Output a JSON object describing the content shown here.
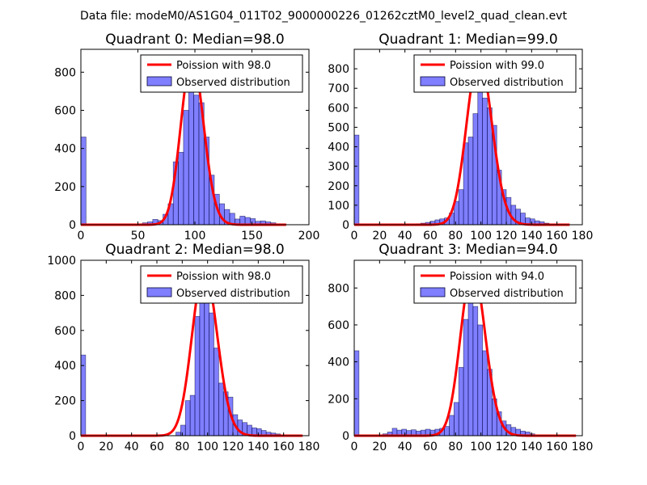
{
  "suptitle": "Data file: modeM0/AS1G04_011T02_9000000226_01262cztM0_level2_quad_clean.evt",
  "colors": {
    "poisson": "#ff0000",
    "observed": "#0000ff"
  },
  "chart_data": [
    {
      "type": "bar",
      "title": "Quadrant 0: Median=98.0",
      "median": 98.0,
      "legend": {
        "position": "top-right",
        "poisson_label": "Poission with 98.0",
        "observed_label": "Observed distribution"
      },
      "xlim": [
        0,
        200
      ],
      "ylim": [
        0,
        920
      ],
      "xticks": [
        0,
        50,
        100,
        150,
        200
      ],
      "yticks": [
        0,
        200,
        400,
        600,
        800
      ],
      "bin_width": 4.5,
      "bars": [
        {
          "x": 0,
          "h": 460
        },
        {
          "x": 49.5,
          "h": 5
        },
        {
          "x": 54,
          "h": 10
        },
        {
          "x": 58.5,
          "h": 15
        },
        {
          "x": 63,
          "h": 28
        },
        {
          "x": 67.5,
          "h": 22
        },
        {
          "x": 72,
          "h": 55
        },
        {
          "x": 76.5,
          "h": 110
        },
        {
          "x": 81,
          "h": 330
        },
        {
          "x": 85.5,
          "h": 380
        },
        {
          "x": 90,
          "h": 600
        },
        {
          "x": 94.5,
          "h": 730
        },
        {
          "x": 99,
          "h": 680
        },
        {
          "x": 103.5,
          "h": 640
        },
        {
          "x": 108,
          "h": 460
        },
        {
          "x": 112.5,
          "h": 260
        },
        {
          "x": 117,
          "h": 160
        },
        {
          "x": 121.5,
          "h": 110
        },
        {
          "x": 126,
          "h": 80
        },
        {
          "x": 130.5,
          "h": 60
        },
        {
          "x": 135,
          "h": 30
        },
        {
          "x": 139.5,
          "h": 45
        },
        {
          "x": 144,
          "h": 38
        },
        {
          "x": 148.5,
          "h": 32
        },
        {
          "x": 153,
          "h": 18
        },
        {
          "x": 157.5,
          "h": 20
        },
        {
          "x": 162,
          "h": 15
        },
        {
          "x": 166.5,
          "h": 10
        },
        {
          "x": 171,
          "h": 5
        },
        {
          "x": 175.5,
          "h": 3
        }
      ],
      "poisson_xmax": 180,
      "poisson_peak": 875
    },
    {
      "type": "bar",
      "title": "Quadrant 1: Median=99.0",
      "median": 99.0,
      "legend": {
        "position": "top-right",
        "poisson_label": "Poission with 99.0",
        "observed_label": "Observed distribution"
      },
      "xlim": [
        0,
        180
      ],
      "ylim": [
        0,
        900
      ],
      "xticks": [
        0,
        20,
        40,
        60,
        80,
        100,
        120,
        140,
        160,
        180
      ],
      "yticks": [
        0,
        100,
        200,
        300,
        400,
        500,
        600,
        700,
        800
      ],
      "bin_width": 3.75,
      "bars": [
        {
          "x": 0,
          "h": 460
        },
        {
          "x": 48.75,
          "h": 5
        },
        {
          "x": 52.5,
          "h": 8
        },
        {
          "x": 56.25,
          "h": 12
        },
        {
          "x": 60,
          "h": 18
        },
        {
          "x": 63.75,
          "h": 25
        },
        {
          "x": 67.5,
          "h": 30
        },
        {
          "x": 71.25,
          "h": 35
        },
        {
          "x": 75,
          "h": 60
        },
        {
          "x": 78.75,
          "h": 120
        },
        {
          "x": 82.5,
          "h": 180
        },
        {
          "x": 86.25,
          "h": 420
        },
        {
          "x": 90,
          "h": 450
        },
        {
          "x": 93.75,
          "h": 570
        },
        {
          "x": 97.5,
          "h": 680
        },
        {
          "x": 101.25,
          "h": 650
        },
        {
          "x": 105,
          "h": 600
        },
        {
          "x": 108.75,
          "h": 510
        },
        {
          "x": 112.5,
          "h": 280
        },
        {
          "x": 116.25,
          "h": 180
        },
        {
          "x": 120,
          "h": 140
        },
        {
          "x": 123.75,
          "h": 100
        },
        {
          "x": 127.5,
          "h": 80
        },
        {
          "x": 131.25,
          "h": 60
        },
        {
          "x": 135,
          "h": 35
        },
        {
          "x": 138.75,
          "h": 30
        },
        {
          "x": 142.5,
          "h": 20
        },
        {
          "x": 146.25,
          "h": 15
        },
        {
          "x": 150,
          "h": 8
        }
      ],
      "poisson_xmax": 170,
      "poisson_peak": 860
    },
    {
      "type": "bar",
      "title": "Quadrant 2: Median=98.0",
      "median": 98.0,
      "legend": {
        "position": "top-right",
        "poisson_label": "Poission with 98.0",
        "observed_label": "Observed distribution"
      },
      "xlim": [
        0,
        180
      ],
      "ylim": [
        0,
        1000
      ],
      "xticks": [
        0,
        20,
        40,
        60,
        80,
        100,
        120,
        140,
        160,
        180
      ],
      "yticks": [
        0,
        200,
        400,
        600,
        800,
        1000
      ],
      "bin_width": 3.75,
      "bars": [
        {
          "x": 0,
          "h": 460
        },
        {
          "x": 75,
          "h": 20
        },
        {
          "x": 78.75,
          "h": 60
        },
        {
          "x": 82.5,
          "h": 200
        },
        {
          "x": 86.25,
          "h": 230
        },
        {
          "x": 90,
          "h": 680
        },
        {
          "x": 93.75,
          "h": 800
        },
        {
          "x": 97.5,
          "h": 810
        },
        {
          "x": 101.25,
          "h": 700
        },
        {
          "x": 105,
          "h": 500
        },
        {
          "x": 108.75,
          "h": 300
        },
        {
          "x": 112.5,
          "h": 250
        },
        {
          "x": 116.25,
          "h": 220
        },
        {
          "x": 120,
          "h": 120
        },
        {
          "x": 123.75,
          "h": 90
        },
        {
          "x": 127.5,
          "h": 75
        },
        {
          "x": 131.25,
          "h": 60
        },
        {
          "x": 135,
          "h": 45
        },
        {
          "x": 138.75,
          "h": 40
        },
        {
          "x": 142.5,
          "h": 30
        },
        {
          "x": 146.25,
          "h": 20
        },
        {
          "x": 150,
          "h": 15
        },
        {
          "x": 153.75,
          "h": 10
        },
        {
          "x": 157.5,
          "h": 5
        }
      ],
      "poisson_xmax": 175,
      "poisson_peak": 950
    },
    {
      "type": "bar",
      "title": "Quadrant 3: Median=94.0",
      "median": 94.0,
      "legend": {
        "position": "top-right",
        "poisson_label": "Poission with 94.0",
        "observed_label": "Observed distribution"
      },
      "xlim": [
        0,
        180
      ],
      "ylim": [
        0,
        950
      ],
      "xticks": [
        0,
        20,
        40,
        60,
        80,
        100,
        120,
        140,
        160,
        180
      ],
      "yticks": [
        0,
        200,
        400,
        600,
        800
      ],
      "bin_width": 3.75,
      "bars": [
        {
          "x": 0,
          "h": 460
        },
        {
          "x": 22.5,
          "h": 10
        },
        {
          "x": 26.25,
          "h": 20
        },
        {
          "x": 30,
          "h": 40
        },
        {
          "x": 33.75,
          "h": 30
        },
        {
          "x": 37.5,
          "h": 35
        },
        {
          "x": 41.25,
          "h": 28
        },
        {
          "x": 45,
          "h": 32
        },
        {
          "x": 48.75,
          "h": 25
        },
        {
          "x": 52.5,
          "h": 30
        },
        {
          "x": 56.25,
          "h": 35
        },
        {
          "x": 60,
          "h": 30
        },
        {
          "x": 63.75,
          "h": 35
        },
        {
          "x": 67.5,
          "h": 40
        },
        {
          "x": 71.25,
          "h": 50
        },
        {
          "x": 75,
          "h": 110
        },
        {
          "x": 78.75,
          "h": 180
        },
        {
          "x": 82.5,
          "h": 370
        },
        {
          "x": 86.25,
          "h": 630
        },
        {
          "x": 90,
          "h": 750
        },
        {
          "x": 93.75,
          "h": 700
        },
        {
          "x": 97.5,
          "h": 600
        },
        {
          "x": 101.25,
          "h": 460
        },
        {
          "x": 105,
          "h": 360
        },
        {
          "x": 108.75,
          "h": 200
        },
        {
          "x": 112.5,
          "h": 130
        },
        {
          "x": 116.25,
          "h": 80
        },
        {
          "x": 120,
          "h": 60
        },
        {
          "x": 123.75,
          "h": 45
        },
        {
          "x": 127.5,
          "h": 35
        },
        {
          "x": 131.25,
          "h": 25
        },
        {
          "x": 135,
          "h": 20
        },
        {
          "x": 138.75,
          "h": 10
        },
        {
          "x": 142.5,
          "h": 5
        }
      ],
      "poisson_xmax": 175,
      "poisson_peak": 905
    }
  ]
}
